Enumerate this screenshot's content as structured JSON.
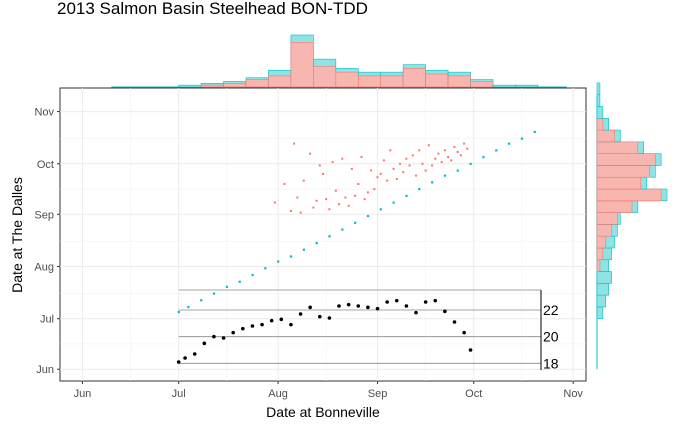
{
  "chart_data": {
    "type": "scatter",
    "title": "2013 Salmon Basin Steelhead BON-TDD",
    "xlabel": "Date at Bonneville",
    "ylabel": "Date at The Dalles",
    "x_ticks": [
      "Jun",
      "Jul",
      "Aug",
      "Sep",
      "Oct",
      "Nov"
    ],
    "y_ticks": [
      "Jun",
      "Jul",
      "Aug",
      "Sep",
      "Oct",
      "Nov"
    ],
    "xlim": [
      "2013-05-25",
      "2013-11-05"
    ],
    "ylim": [
      "2013-05-25",
      "2013-11-15"
    ],
    "grid": true,
    "legend": "none",
    "series_colors": {
      "coral": "#f8766d",
      "teal": "#00bfc4"
    },
    "scatter_points": {
      "coral_x": [
        "2013-07-31",
        "2013-08-03",
        "2013-08-05",
        "2013-08-06",
        "2013-08-07",
        "2013-08-08",
        "2013-08-09",
        "2013-08-11",
        "2013-08-12",
        "2013-08-13",
        "2013-08-14",
        "2013-08-15",
        "2013-08-16",
        "2013-08-17",
        "2013-08-18",
        "2013-08-19",
        "2013-08-20",
        "2013-08-21",
        "2013-08-22",
        "2013-08-23",
        "2013-08-24",
        "2013-08-25",
        "2013-08-26",
        "2013-08-27",
        "2013-08-28",
        "2013-08-29",
        "2013-08-30",
        "2013-08-31",
        "2013-09-01",
        "2013-09-02",
        "2013-09-03",
        "2013-09-04",
        "2013-09-05",
        "2013-09-06",
        "2013-09-07",
        "2013-09-08",
        "2013-09-09",
        "2013-09-10",
        "2013-09-11",
        "2013-09-12",
        "2013-09-13",
        "2013-09-14",
        "2013-09-15",
        "2013-09-16",
        "2013-09-17",
        "2013-09-18",
        "2013-09-19",
        "2013-09-20",
        "2013-09-21",
        "2013-09-22",
        "2013-09-23",
        "2013-09-24",
        "2013-09-25",
        "2013-09-26",
        "2013-09-27",
        "2013-09-28",
        "2013-09-29"
      ],
      "coral_y": [
        "2013-09-08",
        "2013-09-19",
        "2013-09-03",
        "2013-10-13",
        "2013-09-11",
        "2013-09-02",
        "2013-09-21",
        "2013-10-07",
        "2013-09-05",
        "2013-09-09",
        "2013-09-30",
        "2013-09-25",
        "2013-09-10",
        "2013-09-04",
        "2013-10-02",
        "2013-09-15",
        "2013-09-07",
        "2013-10-04",
        "2013-09-11",
        "2013-09-06",
        "2013-09-28",
        "2013-09-12",
        "2013-09-19",
        "2013-10-05",
        "2013-09-10",
        "2013-09-14",
        "2013-09-27",
        "2013-09-16",
        "2013-09-23",
        "2013-09-25",
        "2013-10-03",
        "2013-09-21",
        "2013-10-09",
        "2013-09-28",
        "2013-09-22",
        "2013-10-01",
        "2013-09-26",
        "2013-10-04",
        "2013-09-30",
        "2013-10-06",
        "2013-09-24",
        "2013-10-09",
        "2013-10-01",
        "2013-09-27",
        "2013-10-12",
        "2013-09-30",
        "2013-10-04",
        "2013-10-07",
        "2013-10-02",
        "2013-10-09",
        "2013-10-05",
        "2013-10-03",
        "2013-10-11",
        "2013-10-08",
        "2013-10-06",
        "2013-10-13",
        "2013-10-10"
      ],
      "teal_x": [
        "2013-07-01",
        "2013-07-04",
        "2013-07-08",
        "2013-07-12",
        "2013-07-16",
        "2013-07-20",
        "2013-07-24",
        "2013-07-28",
        "2013-08-01",
        "2013-08-05",
        "2013-08-09",
        "2013-08-13",
        "2013-08-17",
        "2013-08-21",
        "2013-08-25",
        "2013-08-29",
        "2013-09-02",
        "2013-09-06",
        "2013-09-10",
        "2013-09-14",
        "2013-09-18",
        "2013-09-22",
        "2013-09-26",
        "2013-09-30",
        "2013-10-04",
        "2013-10-08",
        "2013-10-12",
        "2013-10-16",
        "2013-10-20"
      ],
      "teal_y": [
        "2013-07-05",
        "2013-07-08",
        "2013-07-12",
        "2013-07-16",
        "2013-07-20",
        "2013-07-23",
        "2013-07-27",
        "2013-07-31",
        "2013-08-04",
        "2013-08-07",
        "2013-08-11",
        "2013-08-15",
        "2013-08-19",
        "2013-08-23",
        "2013-08-27",
        "2013-08-31",
        "2013-09-04",
        "2013-09-08",
        "2013-09-12",
        "2013-09-16",
        "2013-09-20",
        "2013-09-24",
        "2013-09-27",
        "2013-10-01",
        "2013-10-05",
        "2013-10-09",
        "2013-10-13",
        "2013-10-16",
        "2013-10-20"
      ]
    },
    "inset_line": {
      "y_ticks": [
        18,
        20,
        22
      ],
      "ylim": [
        17.5,
        23.5
      ],
      "x": [
        "2013-07-01",
        "2013-07-03",
        "2013-07-06",
        "2013-07-09",
        "2013-07-12",
        "2013-07-15",
        "2013-07-18",
        "2013-07-21",
        "2013-07-24",
        "2013-07-27",
        "2013-07-30",
        "2013-08-02",
        "2013-08-05",
        "2013-08-08",
        "2013-08-11",
        "2013-08-14",
        "2013-08-17",
        "2013-08-20",
        "2013-08-23",
        "2013-08-26",
        "2013-08-29",
        "2013-09-01",
        "2013-09-04",
        "2013-09-07",
        "2013-09-10",
        "2013-09-13",
        "2013-09-16",
        "2013-09-19",
        "2013-09-22",
        "2013-09-25",
        "2013-09-28",
        "2013-09-30"
      ],
      "values": [
        18.1,
        18.4,
        18.7,
        19.5,
        20.0,
        19.9,
        20.3,
        20.6,
        20.8,
        20.9,
        21.2,
        21.3,
        20.9,
        21.7,
        22.2,
        21.5,
        21.4,
        22.3,
        22.4,
        22.3,
        22.2,
        22.1,
        22.6,
        22.7,
        22.3,
        21.8,
        22.6,
        22.7,
        21.9,
        21.1,
        20.3,
        19.0
      ]
    },
    "top_histogram": {
      "bin_start": [
        "2013-07-01",
        "2013-07-08",
        "2013-07-15",
        "2013-07-22",
        "2013-07-29",
        "2013-08-05",
        "2013-08-12",
        "2013-08-19",
        "2013-08-26",
        "2013-09-02",
        "2013-09-09",
        "2013-09-16",
        "2013-09-23",
        "2013-09-30",
        "2013-10-07",
        "2013-10-14",
        "2013-10-21"
      ],
      "coral": [
        0,
        1,
        2,
        4,
        6,
        24,
        11,
        8,
        6,
        6,
        10,
        7,
        6,
        3,
        0,
        0,
        0
      ],
      "teal": [
        1,
        2,
        3,
        5,
        9,
        28,
        15,
        10,
        8,
        8,
        12,
        9,
        8,
        4,
        1,
        1,
        0
      ]
    },
    "right_histogram": {
      "bin_start": [
        "2013-06-01",
        "2013-06-15",
        "2013-07-01",
        "2013-07-08",
        "2013-07-15",
        "2013-07-22",
        "2013-07-29",
        "2013-08-05",
        "2013-08-12",
        "2013-08-19",
        "2013-08-26",
        "2013-09-02",
        "2013-09-09",
        "2013-09-16",
        "2013-09-23",
        "2013-09-30",
        "2013-10-07",
        "2013-10-14",
        "2013-10-21",
        "2013-10-28",
        "2013-11-04",
        "2013-11-11"
      ],
      "coral": [
        0,
        0,
        0,
        0,
        0,
        0,
        1,
        2,
        3,
        5,
        7,
        12,
        22,
        15,
        18,
        20,
        14,
        6,
        2,
        0,
        0,
        0
      ],
      "teal": [
        0,
        0,
        2,
        3,
        4,
        5,
        4,
        5,
        6,
        7,
        8,
        14,
        24,
        17,
        20,
        22,
        16,
        8,
        4,
        2,
        1,
        1
      ]
    }
  }
}
